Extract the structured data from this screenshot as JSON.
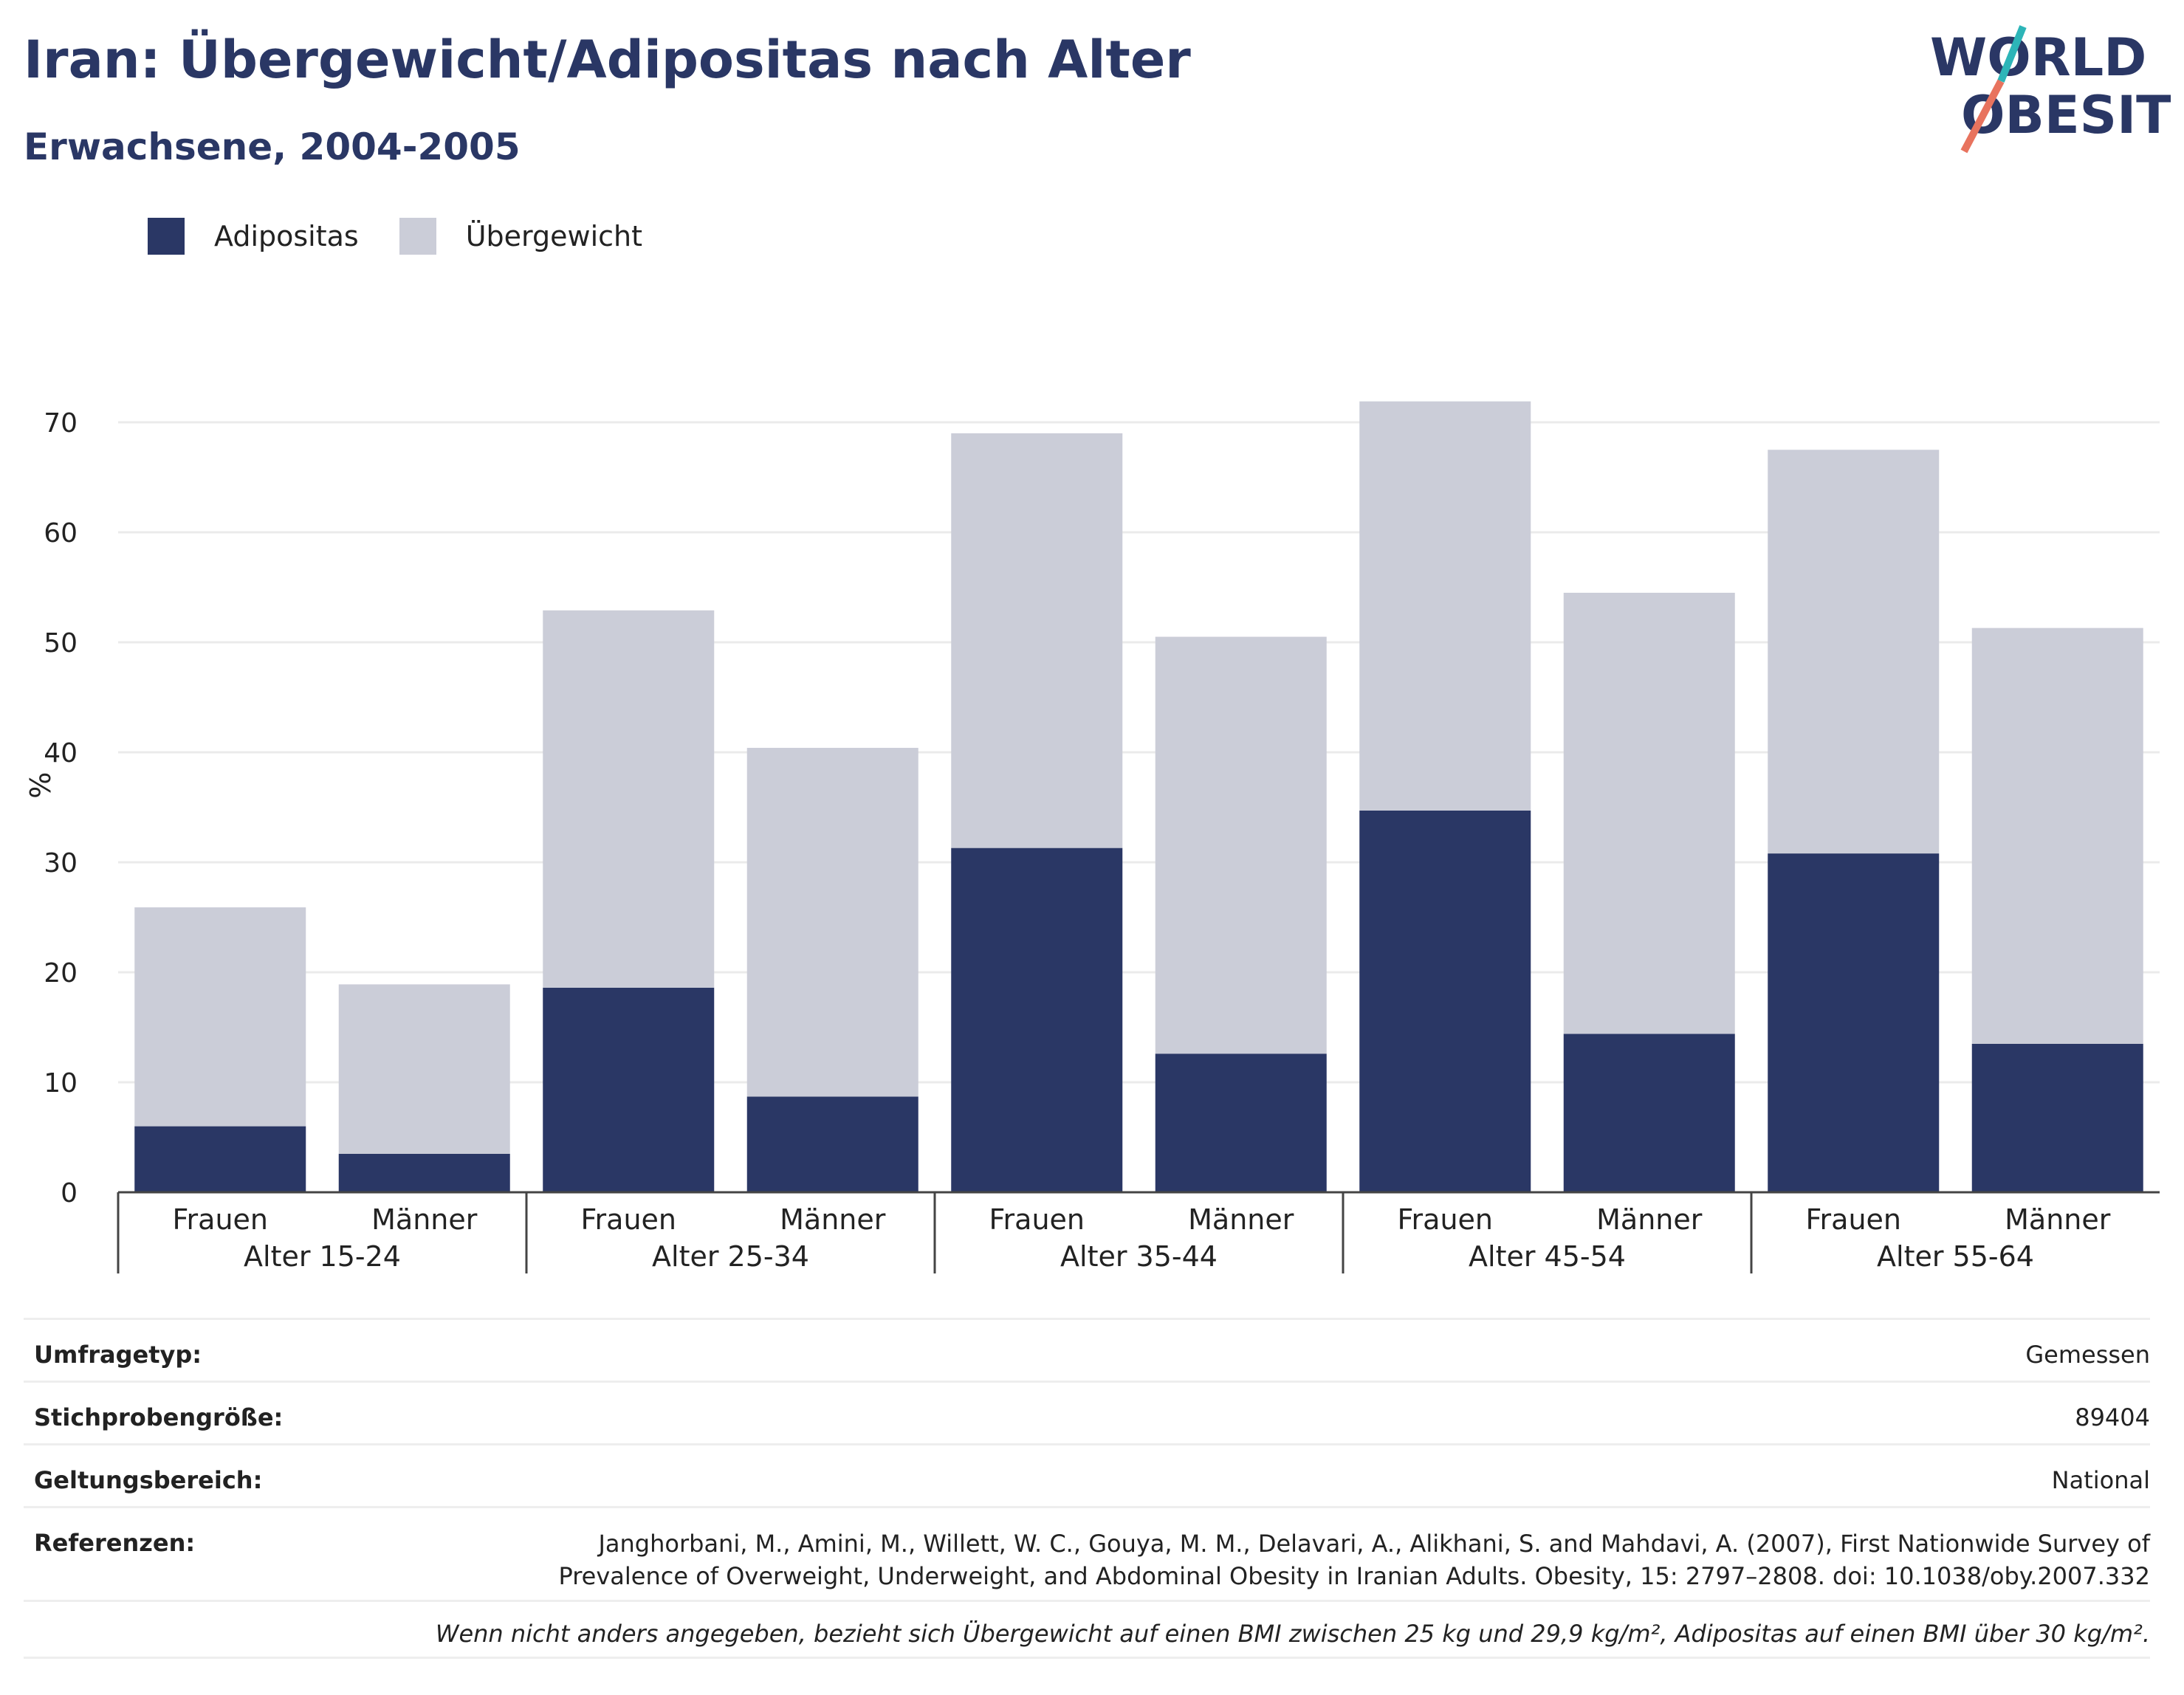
{
  "header": {
    "title": "Iran: Übergewicht/Adipositas nach Alter",
    "subtitle": "Erwachsene, 2004-2005"
  },
  "logo": {
    "line1": "WORLD",
    "line2": "OBESITY",
    "colors": {
      "text": "#2a3765",
      "slash_top": "#2db5b8",
      "slash_bottom": "#e8735e"
    }
  },
  "legend": [
    {
      "label": "Adipositas",
      "color": "#2a3765"
    },
    {
      "label": "Übergewicht",
      "color": "#cbcdd8"
    }
  ],
  "chart_data": {
    "type": "bar",
    "stacked": true,
    "ylabel": "%",
    "ylim": [
      0,
      75
    ],
    "yticks": [
      0,
      10,
      20,
      30,
      40,
      50,
      60,
      70
    ],
    "grid": true,
    "legend_position": "top-left",
    "groups": [
      "Alter 15-24",
      "Alter 25-34",
      "Alter 35-44",
      "Alter 45-54",
      "Alter 55-64"
    ],
    "categories": [
      "Frauen",
      "Männer",
      "Frauen",
      "Männer",
      "Frauen",
      "Männer",
      "Frauen",
      "Männer",
      "Frauen",
      "Männer"
    ],
    "series": [
      {
        "name": "Adipositas",
        "color": "#2a3765",
        "values": [
          6.0,
          3.5,
          18.6,
          8.7,
          31.3,
          12.6,
          34.7,
          14.4,
          30.8,
          13.5
        ]
      },
      {
        "name": "Übergewicht",
        "color": "#cbcdd8",
        "values": [
          19.9,
          15.4,
          34.3,
          31.7,
          37.7,
          37.9,
          37.2,
          40.1,
          36.7,
          37.8
        ]
      }
    ]
  },
  "info": {
    "survey_type": {
      "label": "Umfragetyp:",
      "value": "Gemessen"
    },
    "sample_size": {
      "label": "Stichprobengröße:",
      "value": "89404"
    },
    "coverage": {
      "label": "Geltungsbereich:",
      "value": "National"
    },
    "references": {
      "label": "Referenzen:",
      "line1": "Janghorbani, M., Amini, M., Willett, W. C., Gouya, M. M., Delavari, A., Alikhani, S. and Mahdavi, A. (2007), First Nationwide Survey of",
      "line2": "Prevalence of Overweight, Underweight, and Abdominal Obesity in Iranian Adults. Obesity, 15: 2797–2808. doi: 10.1038/oby.2007.332"
    },
    "note": "Wenn nicht anders angegeben, bezieht sich Übergewicht auf einen BMI zwischen 25 kg und 29,9 kg/m², Adipositas auf einen BMI über 30 kg/m²."
  }
}
